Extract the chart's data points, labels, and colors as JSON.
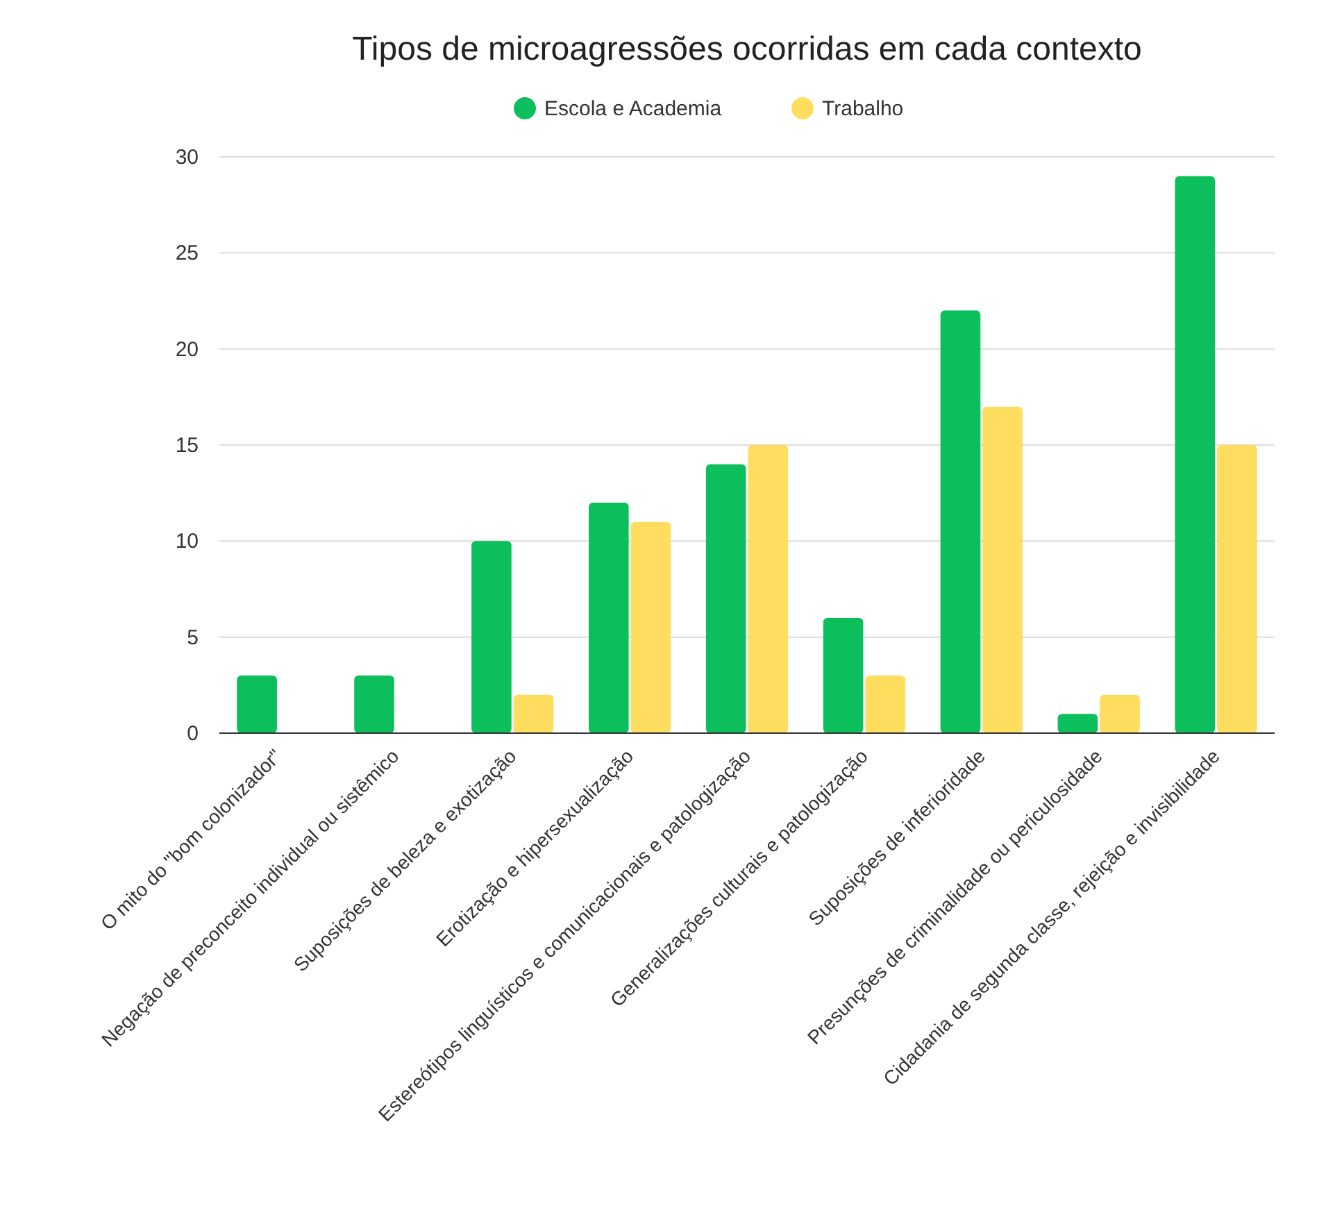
{
  "chart_data": {
    "type": "bar",
    "title": "Tipos de microagressões ocorridas em cada contexto",
    "categories": [
      "O mito do \"bom colonizador\"",
      "Negação de preconceito individual ou sistêmico",
      "Suposições de beleza e exotização",
      "Erotização e hipersexualização",
      "Estereótipos linguísticos e comunicacionais e patologização",
      "Generalizações culturais e patologização",
      "Suposições de inferioridade",
      "Presunções de criminalidade ou periculosidade",
      "Cidadania de segunda classe, rejeição e invisibilidade"
    ],
    "series": [
      {
        "name": "Escola e Academia",
        "color": "#0dbf5c",
        "values": [
          3,
          3,
          10,
          12,
          14,
          6,
          22,
          1,
          29
        ]
      },
      {
        "name": "Trabalho",
        "color": "#ffdd5e",
        "values": [
          0,
          0,
          2,
          11,
          15,
          3,
          17,
          2,
          15
        ]
      }
    ],
    "ylim": [
      0,
      30
    ],
    "yticks": [
      0,
      5,
      10,
      15,
      20,
      25,
      30
    ],
    "grid": "y",
    "legend": "top"
  }
}
